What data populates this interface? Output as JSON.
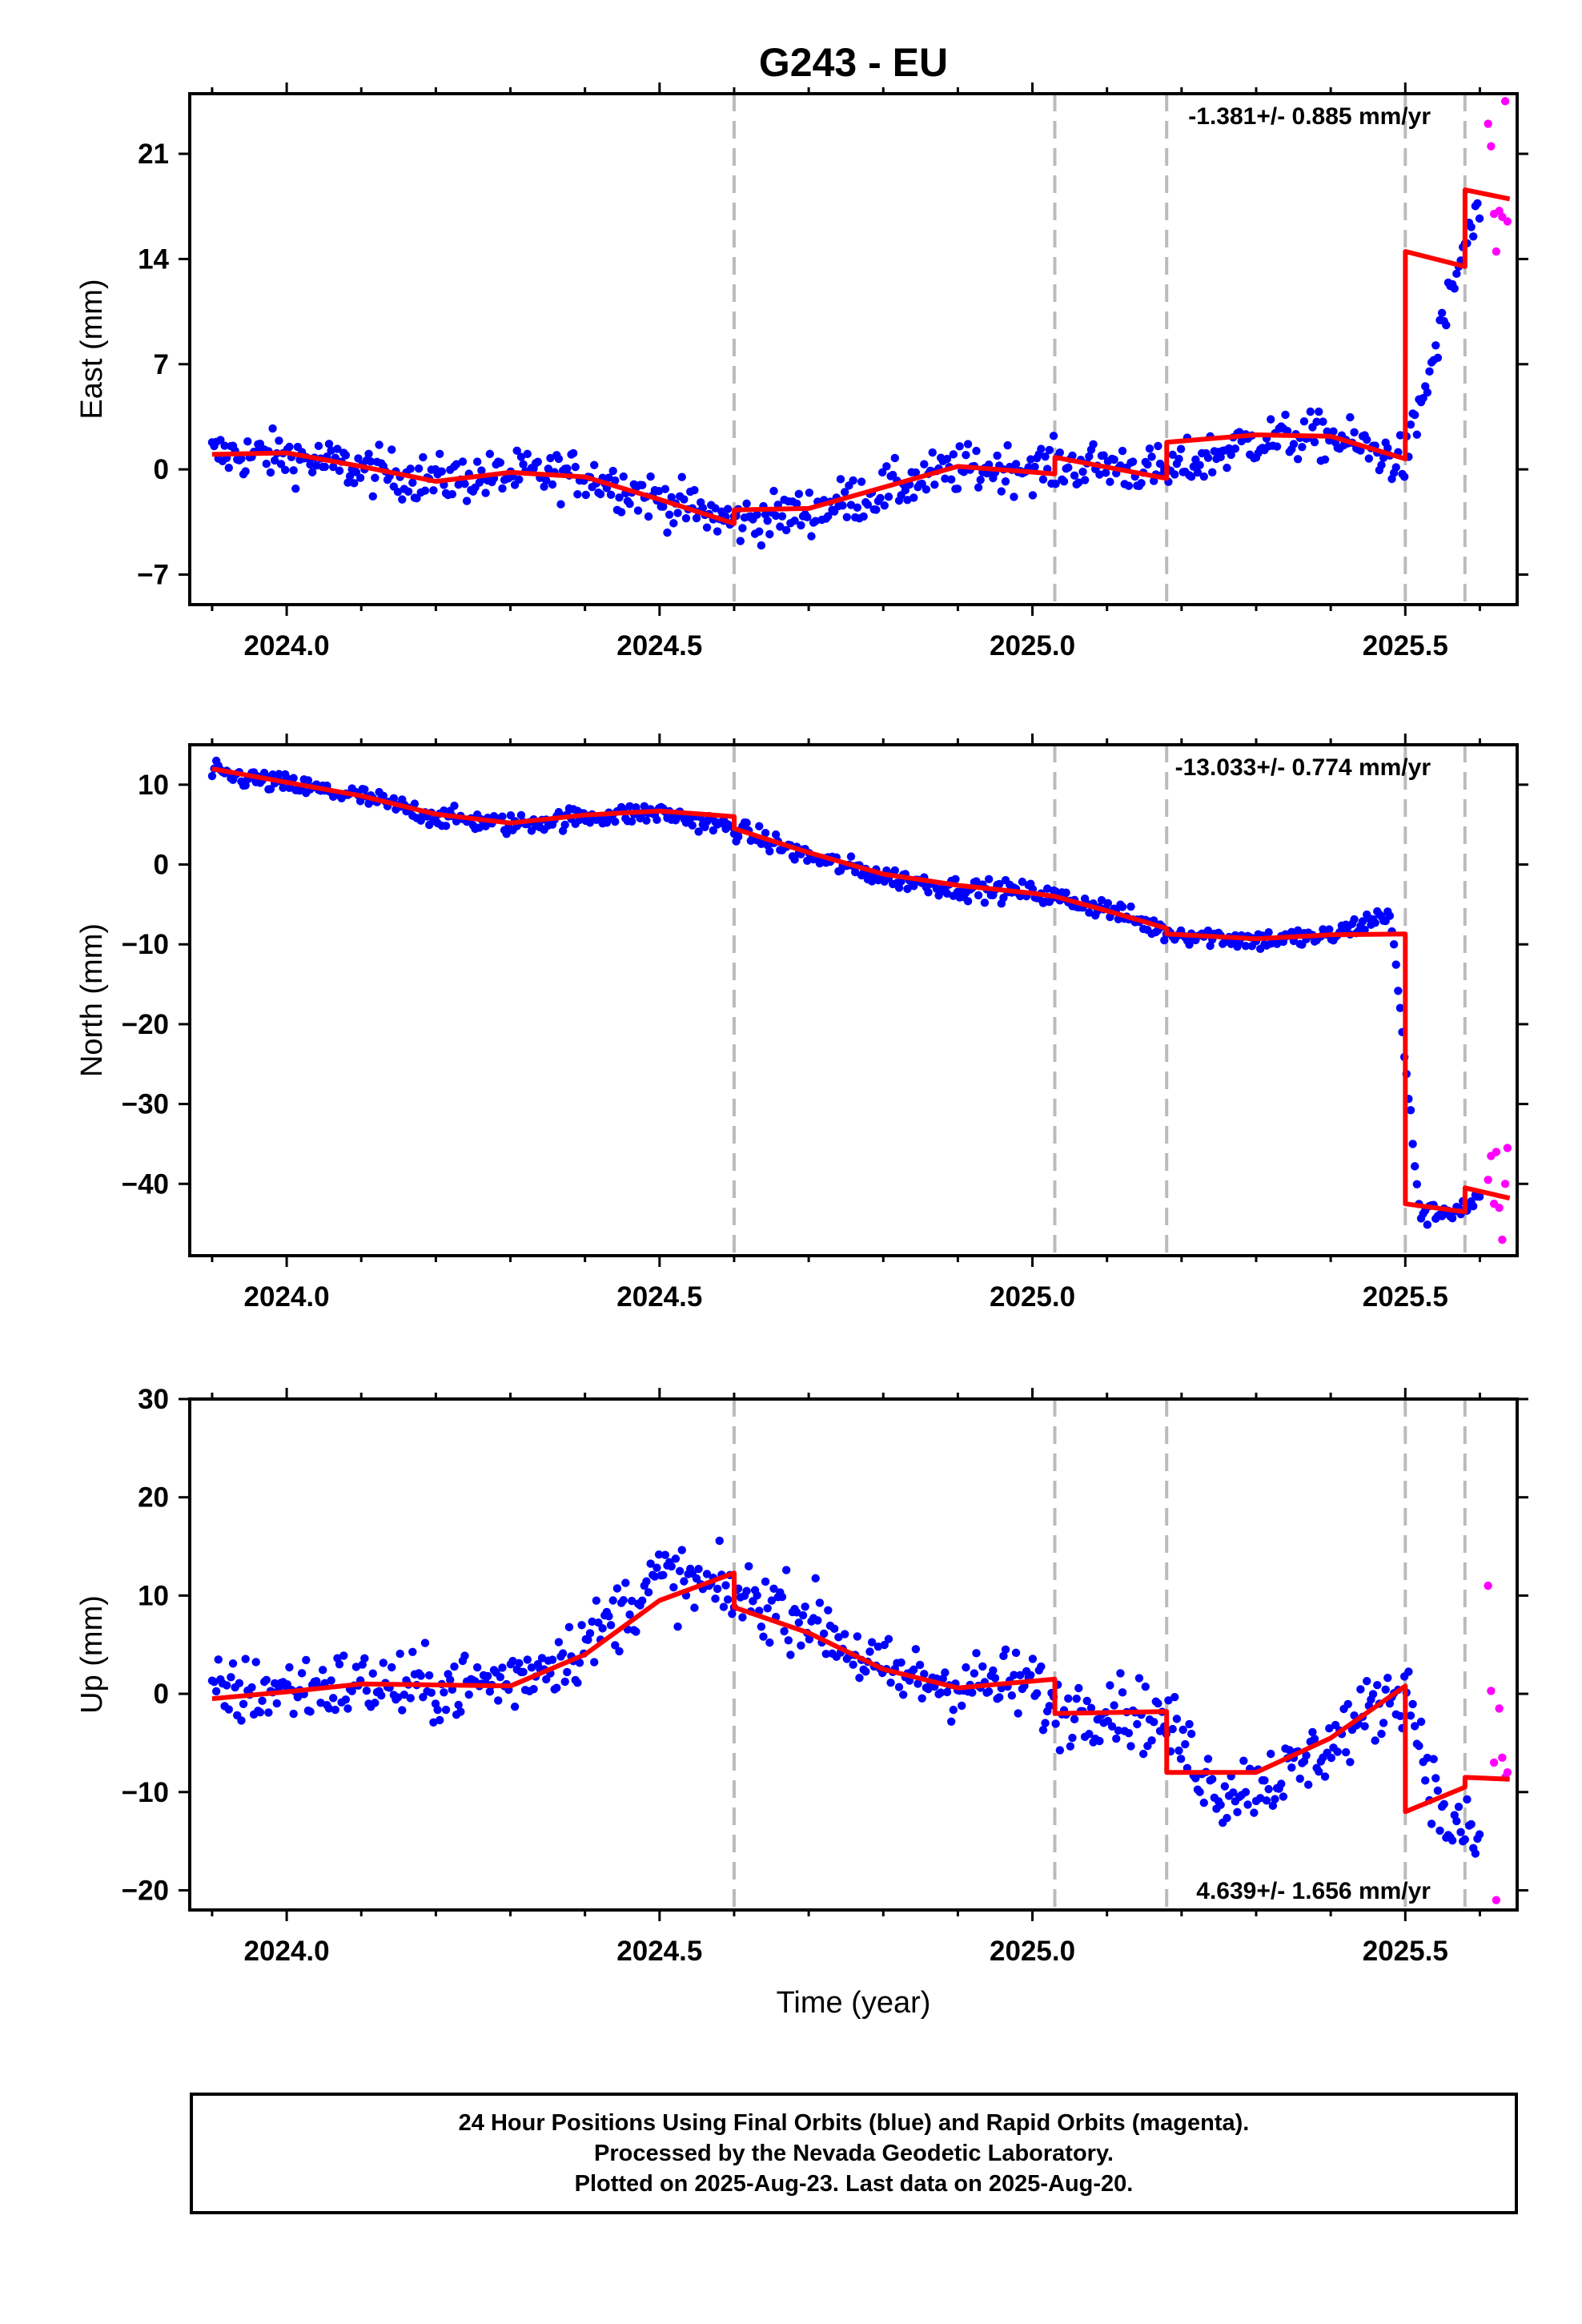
{
  "chart_data": [
    {
      "type": "scatter",
      "title": "G243 - EU",
      "ylabel": "East (mm)",
      "xlabel": "",
      "rate_label": "-1.381+/- 0.885 mm/yr",
      "xlim": [
        2023.87,
        2025.65
      ],
      "ylim": [
        -9,
        25
      ],
      "xticks": [
        2024.0,
        2024.5,
        2025.0,
        2025.5
      ],
      "xtick_labels": [
        "2024.0",
        "2024.5",
        "2025.0",
        "2025.5"
      ],
      "yticks": [
        -7,
        0,
        7,
        14,
        21
      ],
      "ytick_labels": [
        "−7",
        "0",
        "7",
        "14",
        "21"
      ],
      "step_lines": [
        2024.6,
        2025.03,
        2025.18,
        2025.5,
        2025.58
      ],
      "colors": {
        "final": "#0000ff",
        "rapid": "#ff00ff",
        "model": "#ff0000",
        "steps": "#bbbbbb"
      },
      "final_trend": [
        [
          2023.9,
          1.0
        ],
        [
          2024.0,
          0.9
        ],
        [
          2024.1,
          0.0
        ],
        [
          2024.2,
          -0.7
        ],
        [
          2024.3,
          -0.4
        ],
        [
          2024.4,
          -0.3
        ],
        [
          2024.5,
          -2.0
        ],
        [
          2024.6,
          -3.5
        ],
        [
          2024.7,
          -2.8
        ],
        [
          2024.8,
          -1.4
        ],
        [
          2024.9,
          0.0
        ],
        [
          2025.0,
          0.2
        ],
        [
          2025.03,
          0.2
        ],
        [
          2025.1,
          0.3
        ],
        [
          2025.18,
          -0.2
        ],
        [
          2025.3,
          2.0
        ],
        [
          2025.4,
          2.2
        ],
        [
          2025.5,
          0.5
        ],
        [
          2025.58,
          15.0
        ],
        [
          2025.6,
          17.0
        ]
      ],
      "final_spread": 1.6,
      "rapid": [
        [
          2025.611,
          23.0
        ],
        [
          2025.615,
          21.5
        ],
        [
          2025.619,
          17.0
        ],
        [
          2025.622,
          14.5
        ],
        [
          2025.626,
          17.2
        ],
        [
          2025.63,
          16.8
        ],
        [
          2025.634,
          24.5
        ],
        [
          2025.637,
          16.5
        ]
      ],
      "model": [
        [
          2023.9,
          1.0
        ],
        [
          2024.0,
          1.1
        ],
        [
          2024.1,
          0.2
        ],
        [
          2024.2,
          -0.8
        ],
        [
          2024.3,
          -0.2
        ],
        [
          2024.4,
          -0.5
        ],
        [
          2024.5,
          -2.0
        ],
        [
          2024.6,
          -3.6
        ],
        [
          2024.6001,
          -2.7
        ],
        [
          2024.7,
          -2.6
        ],
        [
          2024.8,
          -1.2
        ],
        [
          2024.9,
          0.2
        ],
        [
          2025.03,
          -0.3
        ],
        [
          2025.0301,
          0.8
        ],
        [
          2025.18,
          -0.6
        ],
        [
          2025.1801,
          1.8
        ],
        [
          2025.3,
          2.3
        ],
        [
          2025.4,
          2.2
        ],
        [
          2025.5,
          0.7
        ],
        [
          2025.5001,
          14.5
        ],
        [
          2025.58,
          13.5
        ],
        [
          2025.5801,
          18.6
        ],
        [
          2025.64,
          18.0
        ]
      ]
    },
    {
      "type": "scatter",
      "title": "",
      "ylabel": "North (mm)",
      "xlabel": "",
      "rate_label": "-13.033+/- 0.774 mm/yr",
      "xlim": [
        2023.87,
        2025.65
      ],
      "ylim": [
        -49,
        15
      ],
      "xticks": [
        2024.0,
        2024.5,
        2025.0,
        2025.5
      ],
      "xtick_labels": [
        "2024.0",
        "2024.5",
        "2025.0",
        "2025.5"
      ],
      "yticks": [
        -40,
        -30,
        -20,
        -10,
        0,
        10
      ],
      "ytick_labels": [
        "−40",
        "−30",
        "−20",
        "−10",
        "0",
        "10"
      ],
      "step_lines": [
        2024.6,
        2025.03,
        2025.18,
        2025.5,
        2025.58
      ],
      "colors": {
        "final": "#0000ff",
        "rapid": "#ff00ff",
        "model": "#ff0000",
        "steps": "#bbbbbb"
      },
      "final_trend": [
        [
          2023.9,
          11.5
        ],
        [
          2024.0,
          10.0
        ],
        [
          2024.1,
          8.5
        ],
        [
          2024.2,
          6.0
        ],
        [
          2024.3,
          5.0
        ],
        [
          2024.4,
          6.0
        ],
        [
          2024.5,
          6.5
        ],
        [
          2024.6,
          4.5
        ],
        [
          2024.7,
          1.0
        ],
        [
          2024.8,
          -1.5
        ],
        [
          2024.9,
          -3.0
        ],
        [
          2025.0,
          -3.5
        ],
        [
          2025.1,
          -5.5
        ],
        [
          2025.18,
          -8.5
        ],
        [
          2025.3,
          -9.5
        ],
        [
          2025.4,
          -9.0
        ],
        [
          2025.48,
          -6.0
        ],
        [
          2025.52,
          -44.0
        ],
        [
          2025.58,
          -43.0
        ],
        [
          2025.6,
          -42.0
        ]
      ],
      "final_spread": 1.3,
      "rapid": [
        [
          2025.611,
          -39.5
        ],
        [
          2025.615,
          -36.5
        ],
        [
          2025.619,
          -42.5
        ],
        [
          2025.622,
          -36.0
        ],
        [
          2025.626,
          -43.0
        ],
        [
          2025.63,
          -47.0
        ],
        [
          2025.634,
          -40.0
        ],
        [
          2025.637,
          -35.5
        ]
      ],
      "model": [
        [
          2023.9,
          12.0
        ],
        [
          2024.0,
          10.3
        ],
        [
          2024.1,
          8.6
        ],
        [
          2024.2,
          6.3
        ],
        [
          2024.3,
          5.2
        ],
        [
          2024.4,
          6.2
        ],
        [
          2024.5,
          6.7
        ],
        [
          2024.6,
          6.0
        ],
        [
          2024.6001,
          4.5
        ],
        [
          2024.7,
          1.5
        ],
        [
          2024.8,
          -1.2
        ],
        [
          2024.9,
          -2.6
        ],
        [
          2025.0,
          -3.6
        ],
        [
          2025.03,
          -4.0
        ],
        [
          2025.1,
          -5.8
        ],
        [
          2025.18,
          -8.0
        ],
        [
          2025.1801,
          -8.7
        ],
        [
          2025.3,
          -9.3
        ],
        [
          2025.4,
          -8.8
        ],
        [
          2025.5,
          -8.7
        ],
        [
          2025.5001,
          -42.5
        ],
        [
          2025.58,
          -43.5
        ],
        [
          2025.5801,
          -40.5
        ],
        [
          2025.64,
          -41.8
        ]
      ]
    },
    {
      "type": "scatter",
      "title": "",
      "ylabel": "Up (mm)",
      "xlabel": "Time (year)",
      "rate_label": "4.639+/- 1.656 mm/yr",
      "xlim": [
        2023.87,
        2025.65
      ],
      "ylim": [
        -22,
        30
      ],
      "xticks": [
        2024.0,
        2024.5,
        2025.0,
        2025.5
      ],
      "xtick_labels": [
        "2024.0",
        "2024.5",
        "2025.0",
        "2025.5"
      ],
      "yticks": [
        -20,
        -10,
        0,
        10,
        20,
        30
      ],
      "ytick_labels": [
        "−20",
        "−10",
        "0",
        "10",
        "20",
        "30"
      ],
      "step_lines": [
        2024.6,
        2025.03,
        2025.18,
        2025.5,
        2025.58
      ],
      "colors": {
        "final": "#0000ff",
        "rapid": "#ff00ff",
        "model": "#ff0000",
        "steps": "#bbbbbb"
      },
      "final_trend": [
        [
          2023.9,
          0.0
        ],
        [
          2024.0,
          0.5
        ],
        [
          2024.1,
          1.0
        ],
        [
          2024.2,
          0.5
        ],
        [
          2024.3,
          1.5
        ],
        [
          2024.4,
          5.0
        ],
        [
          2024.5,
          12.0
        ],
        [
          2024.6,
          10.0
        ],
        [
          2024.7,
          8.0
        ],
        [
          2024.8,
          2.0
        ],
        [
          2024.9,
          1.0
        ],
        [
          2025.0,
          1.0
        ],
        [
          2025.03,
          -2.0
        ],
        [
          2025.1,
          -1.0
        ],
        [
          2025.18,
          -3.0
        ],
        [
          2025.25,
          -10.0
        ],
        [
          2025.35,
          -8.0
        ],
        [
          2025.45,
          -2.0
        ],
        [
          2025.5,
          1.0
        ],
        [
          2025.55,
          -13.0
        ],
        [
          2025.6,
          -15.0
        ]
      ],
      "final_spread": 3.6,
      "rapid": [
        [
          2025.611,
          11.0
        ],
        [
          2025.615,
          0.3
        ],
        [
          2025.619,
          -7.0
        ],
        [
          2025.622,
          -21.0
        ],
        [
          2025.626,
          -1.5
        ],
        [
          2025.63,
          -6.5
        ],
        [
          2025.634,
          -8.5
        ],
        [
          2025.637,
          -8.0
        ]
      ],
      "model": [
        [
          2023.9,
          -0.5
        ],
        [
          2024.0,
          0.2
        ],
        [
          2024.1,
          1.0
        ],
        [
          2024.2,
          0.9
        ],
        [
          2024.3,
          0.8
        ],
        [
          2024.4,
          4.0
        ],
        [
          2024.5,
          9.5
        ],
        [
          2024.6,
          12.3
        ],
        [
          2024.6001,
          8.8
        ],
        [
          2024.7,
          6.2
        ],
        [
          2024.8,
          2.5
        ],
        [
          2024.9,
          0.6
        ],
        [
          2025.03,
          1.5
        ],
        [
          2025.0301,
          -2.0
        ],
        [
          2025.18,
          -1.8
        ],
        [
          2025.1801,
          -8.0
        ],
        [
          2025.3,
          -8.0
        ],
        [
          2025.4,
          -4.5
        ],
        [
          2025.5,
          0.8
        ],
        [
          2025.5001,
          -12.0
        ],
        [
          2025.58,
          -9.5
        ],
        [
          2025.5801,
          -8.5
        ],
        [
          2025.64,
          -8.7
        ]
      ]
    }
  ],
  "footer": {
    "line1": "24 Hour Positions Using Final Orbits (blue) and Rapid Orbits (magenta).",
    "line2": "Processed by the Nevada Geodetic Laboratory.",
    "line3": "Plotted on 2025-Aug-23. Last data on 2025-Aug-20."
  }
}
